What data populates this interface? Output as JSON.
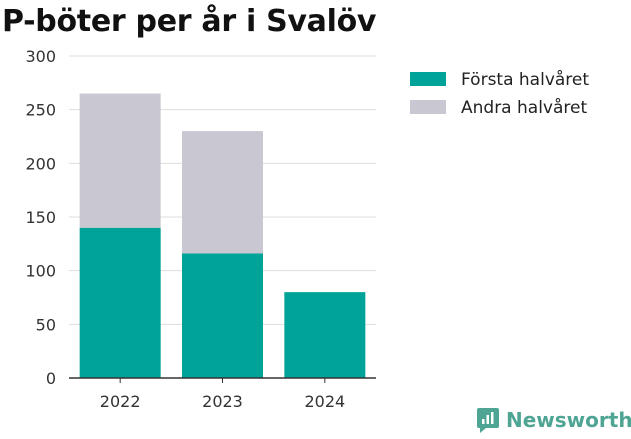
{
  "colors": {
    "series_1": "#00a398",
    "series_2": "#c8c7d2",
    "grid": "#dddddd",
    "axis": "#333333",
    "brand": "#4fa594"
  },
  "brand": {
    "name": "Newsworthy",
    "icon": "newsworthy-logo-icon"
  },
  "chart_data": {
    "type": "bar",
    "stacked": true,
    "title": "P-böter per år i Svalöv",
    "categories": [
      "2022",
      "2023",
      "2024"
    ],
    "series": [
      {
        "name": "Första halvåret",
        "values": [
          140,
          116,
          80
        ]
      },
      {
        "name": "Andra halvåret",
        "values": [
          125,
          114,
          0
        ]
      }
    ],
    "ylim": [
      0,
      300
    ],
    "yticks": [
      0,
      50,
      100,
      150,
      200,
      250,
      300
    ],
    "grid": true,
    "legend": "right",
    "xlabel": "",
    "ylabel": ""
  }
}
